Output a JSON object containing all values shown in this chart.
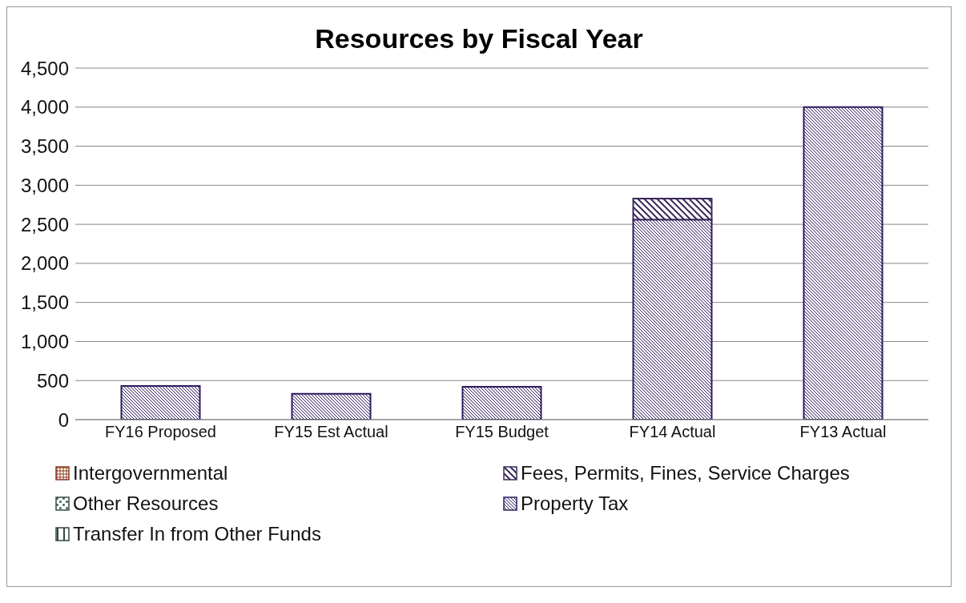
{
  "chart_data": {
    "type": "bar",
    "title": "Resources by Fiscal Year",
    "categories": [
      "FY16 Proposed",
      "FY15 Est Actual",
      "FY15 Budget",
      "FY14 Actual",
      "FY13 Actual"
    ],
    "stacked": true,
    "series": [
      {
        "name": "Transfer In from Other Funds",
        "color": "#2f4a3a",
        "values": [
          0,
          0,
          0,
          0,
          0
        ]
      },
      {
        "name": "Property Tax",
        "color": "#2e1a5e",
        "values": [
          430,
          330,
          420,
          2560,
          4000
        ]
      },
      {
        "name": "Other Resources",
        "color": "#2f4f3f",
        "values": [
          0,
          0,
          0,
          0,
          0
        ]
      },
      {
        "name": "Fees, Permits, Fines, Service Charges",
        "color": "#3a2a5a",
        "values": [
          0,
          0,
          0,
          270,
          0
        ]
      },
      {
        "name": "Intergovernmental",
        "color": "#8b3a1e",
        "values": [
          0,
          0,
          0,
          0,
          0
        ]
      }
    ],
    "ylim": [
      0,
      4500
    ],
    "yticks": [
      {
        "value": 0,
        "label": "0"
      },
      {
        "value": 500,
        "label": "500"
      },
      {
        "value": 1000,
        "label": "1,000"
      },
      {
        "value": 1500,
        "label": "1,500"
      },
      {
        "value": 2000,
        "label": "2,000"
      },
      {
        "value": 2500,
        "label": "2,500"
      },
      {
        "value": 3000,
        "label": "3,000"
      },
      {
        "value": 3500,
        "label": "3,500"
      },
      {
        "value": 4000,
        "label": "4,000"
      },
      {
        "value": 4500,
        "label": "4,500"
      }
    ],
    "grid": "y",
    "legend": "bottom"
  }
}
